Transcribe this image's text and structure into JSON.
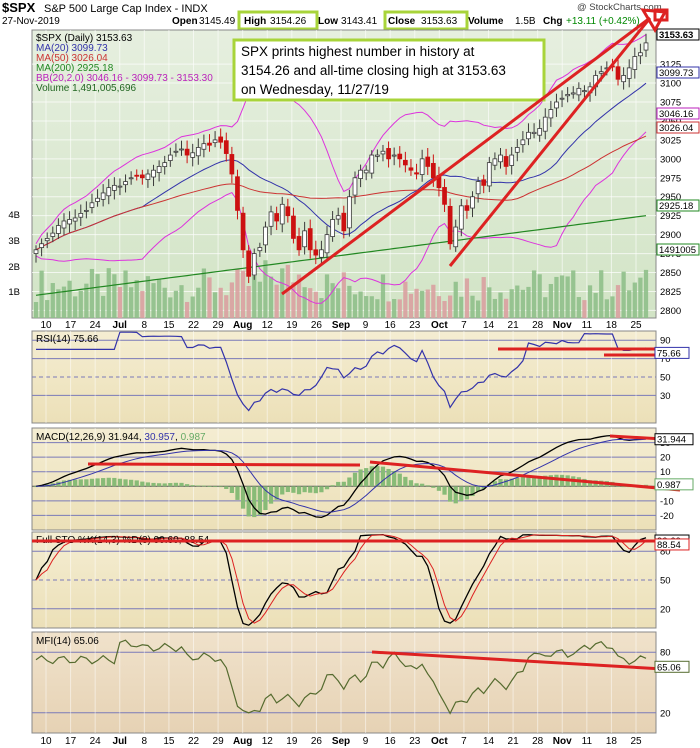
{
  "header": {
    "symbol": "$SPX",
    "name": "S&P 500 Large Cap Index",
    "exchange": "INDX",
    "date": "27-Nov-2019",
    "open_label": "Open",
    "open": "3145.49",
    "high_label": "High",
    "high": "3154.26",
    "low_label": "Low",
    "low": "3143.41",
    "close_label": "Close",
    "close": "3153.63",
    "volume_label": "Volume",
    "volume": "1.5B",
    "chg_label": "Chg",
    "chg": "+13.11 (+0.42%)",
    "watermark": "@ StockCharts.com"
  },
  "annotation": {
    "lines": [
      "SPX prints highest number in history at",
      "3154.26 and all-time closing high at 3153.63",
      "on Wednesday, 11/27/19"
    ]
  },
  "colors": {
    "price_bg_top": "#e2eddc",
    "price_bg_bottom": "#d1e5c4",
    "lower_bg": "#f1e8c6",
    "mfi_bg": "#eedcc2",
    "up": "#3a3a3a",
    "down": "#cc1111",
    "ma20": "#3333aa",
    "ma50": "#cc3333",
    "ma200": "#228822",
    "bb": "#dd33dd",
    "volume": "#8fbf8a",
    "volume_down": "#d9a0a0",
    "annotation_border": "#a8d43a",
    "red_line": "#dd2222"
  },
  "chart_data": [
    {
      "type": "line",
      "title": "$SPX (Daily) 3153.63",
      "series": [
        {
          "name": "$SPX (Daily) 3153.63"
        },
        {
          "name": "MA(20) 3099.73"
        },
        {
          "name": "MA(50) 3026.04"
        },
        {
          "name": "MA(200) 2925.18"
        },
        {
          "name": "BB(20,2.0) 3046.16 - 3099.73 - 3153.30"
        },
        {
          "name": "Volume 1,491,005,696"
        }
      ],
      "ylim": [
        2790,
        3170
      ],
      "y_ticks": [
        2800,
        2825,
        2850,
        2875,
        2900,
        2925,
        2950,
        2975,
        3000,
        3025,
        3050,
        3075,
        3100,
        3125
      ],
      "volume_ticks": [
        "1B",
        "2B",
        "3B",
        "4B"
      ],
      "price_tags": [
        "3153.63",
        "3099.73",
        "3046.16",
        "3026.04",
        "2925.18",
        "1491005"
      ],
      "x_ticks": [
        "10",
        "17",
        "24",
        "Jul",
        "8",
        "15",
        "22",
        "29",
        "Aug",
        "12",
        "19",
        "26",
        "Sep",
        "9",
        "16",
        "23",
        "Oct",
        "7",
        "14",
        "21",
        "28",
        "Nov",
        "11",
        "18",
        "25"
      ],
      "ohlc_approx": [
        2880,
        2888,
        2895,
        2902,
        2912,
        2918,
        2920,
        2922,
        2928,
        2932,
        2942,
        2948,
        2955,
        2962,
        2965,
        2964,
        2970,
        2975,
        2978,
        2975,
        2980,
        2985,
        2990,
        2995,
        3005,
        3010,
        3013,
        3005,
        3008,
        3015,
        3020,
        3018,
        3025,
        3022,
        3007,
        2980,
        2932,
        2880,
        2845,
        2875,
        2883,
        2910,
        2930,
        2918,
        2940,
        2925,
        2895,
        2880,
        2905,
        2880,
        2873,
        2880,
        2900,
        2920,
        2925,
        2905,
        2950,
        2975,
        2985,
        2985,
        3005,
        3005,
        3010,
        3000,
        3005,
        3000,
        2992,
        2985,
        2980,
        3000,
        2990,
        2975,
        2962,
        2940,
        2888,
        2910,
        2938,
        2932,
        2950,
        2970,
        2965,
        2995,
        3000,
        3005,
        2990,
        3005,
        3015,
        3025,
        3035,
        3035,
        3040,
        3055,
        3065,
        3075,
        3080,
        3085,
        3087,
        3093,
        3090,
        3095,
        3110,
        3115,
        3120,
        3122,
        3105,
        3110,
        3120,
        3135,
        3140,
        3153
      ]
    },
    {
      "type": "line",
      "title": "RSI(14) 75.66",
      "ylim": [
        0,
        100
      ],
      "y_ticks": [
        30,
        50,
        70,
        90
      ],
      "tag": "75.66"
    },
    {
      "type": "line",
      "title": "MACD(12,26,9)",
      "macd": "31.944",
      "signal": "30.957",
      "hist": "0.987",
      "ylim": [
        -30,
        40
      ],
      "y_ticks": [
        -20,
        -10,
        10,
        20,
        30
      ],
      "tags": [
        "31.944",
        "0.987"
      ]
    },
    {
      "type": "line",
      "title": "Full STO %K(14,3) %D(3) 90.60, 88.54",
      "ylim": [
        0,
        100
      ],
      "y_ticks": [
        20,
        50,
        80
      ],
      "tags": [
        "90.60",
        "88.54"
      ]
    },
    {
      "type": "line",
      "title": "MFI(14) 65.06",
      "ylim": [
        0,
        100
      ],
      "y_ticks": [
        20,
        80
      ],
      "tag": "65.06"
    }
  ]
}
